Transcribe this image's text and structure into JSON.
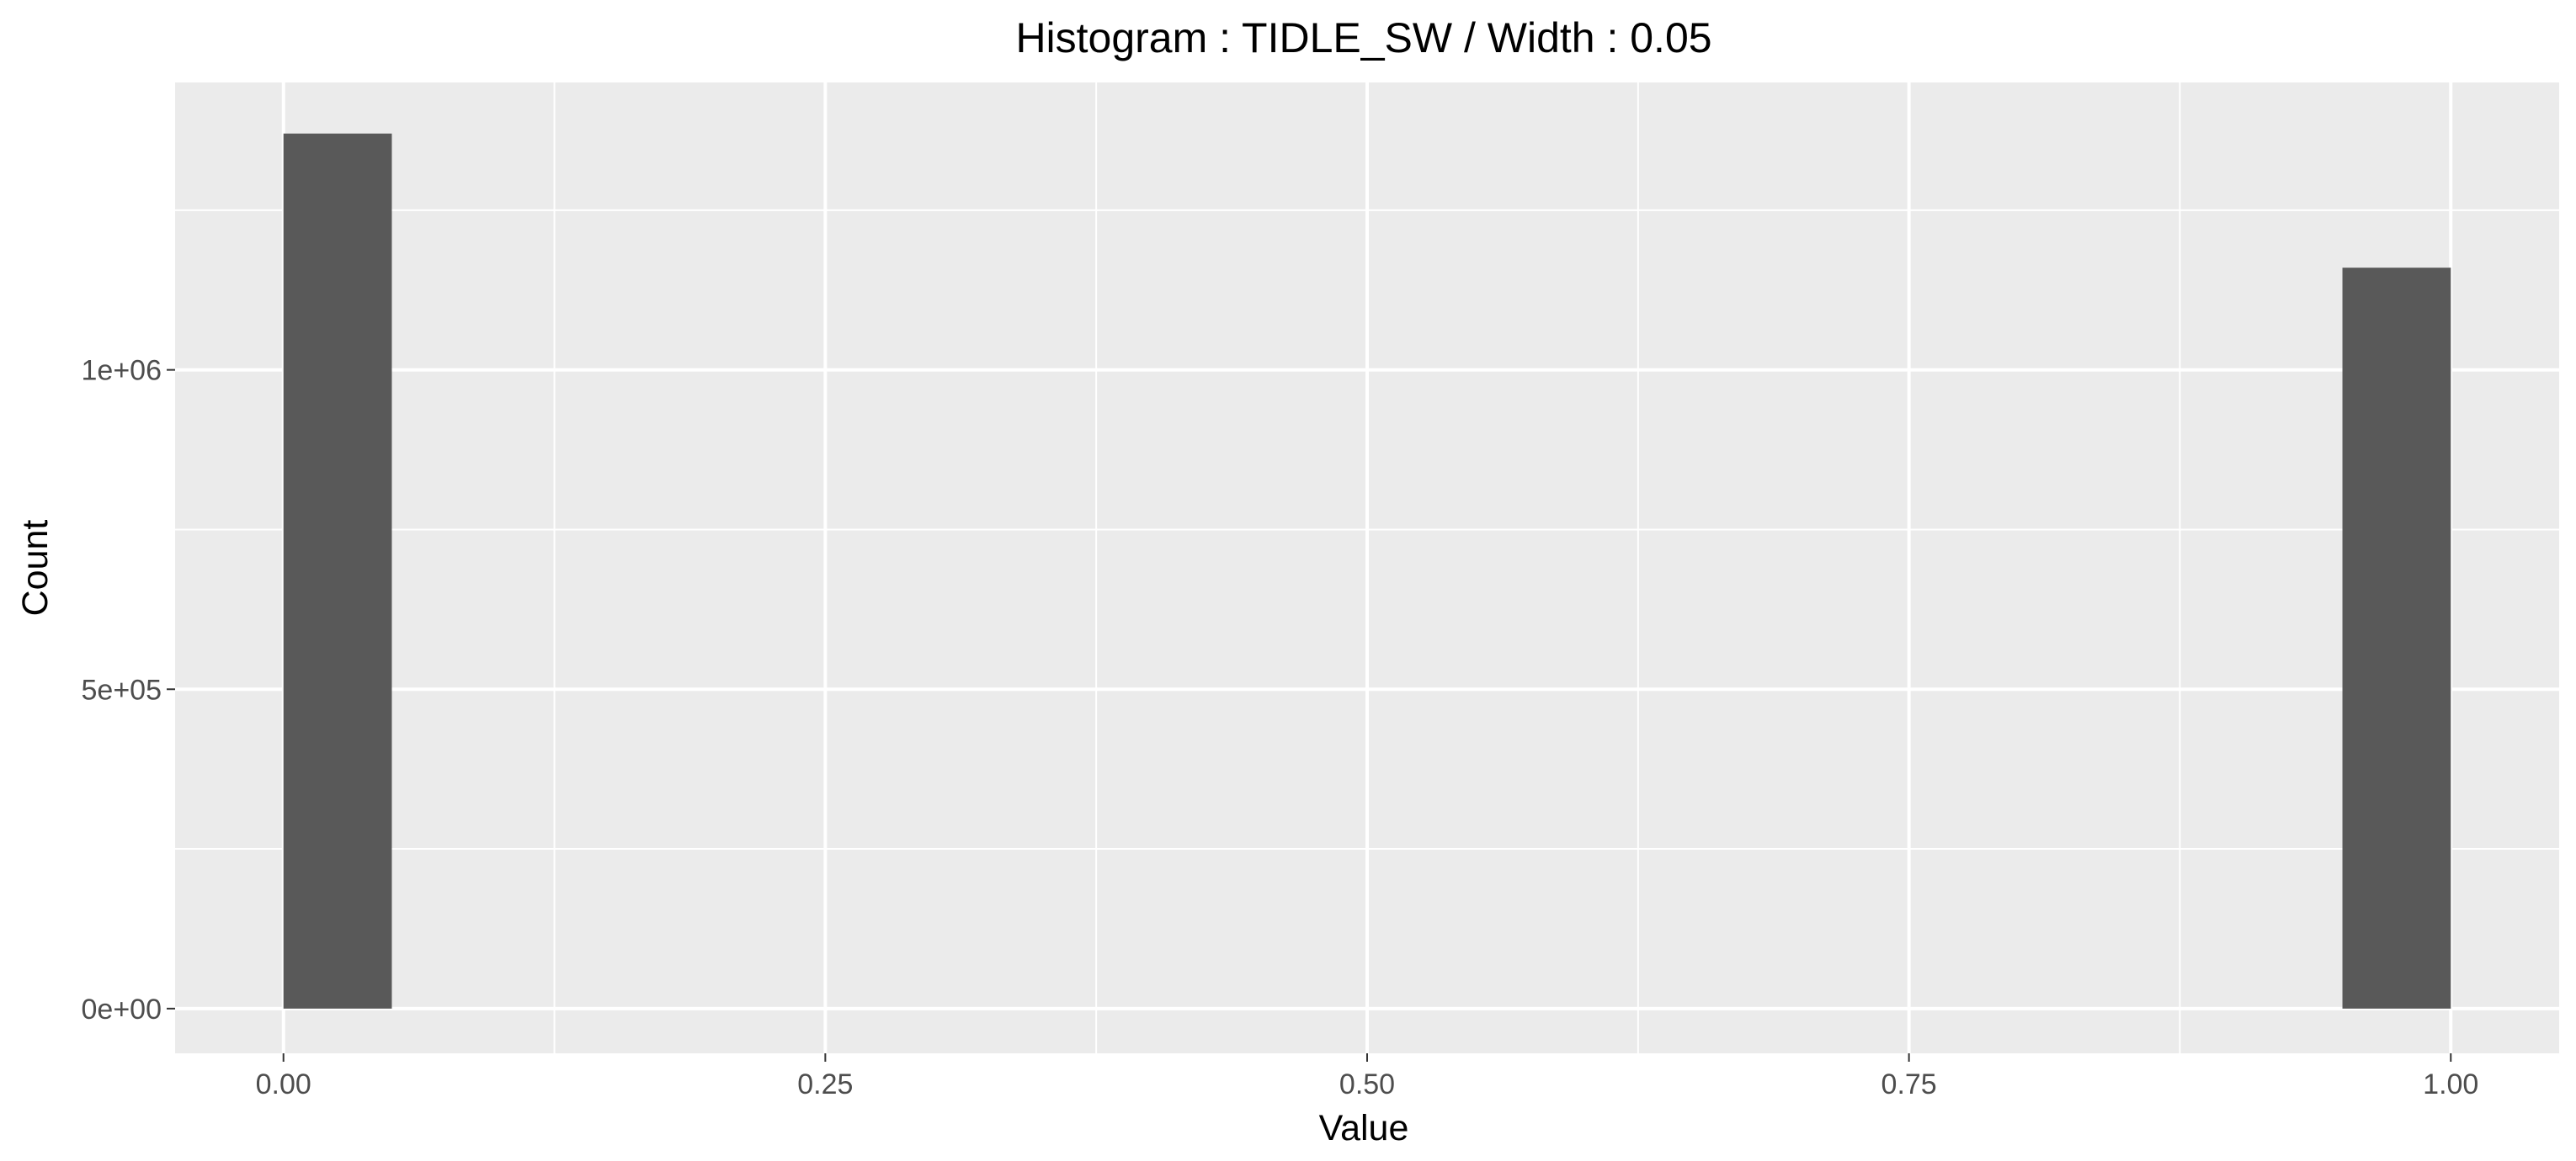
{
  "chart_data": {
    "type": "bar",
    "title": "Histogram : TIDLE_SW / Width : 0.05",
    "xlabel": "Value",
    "ylabel": "Count",
    "xlim": [
      -0.05,
      1.05
    ],
    "ylim": [
      -70000,
      1450000
    ],
    "x_ticks": [
      0,
      0.25,
      0.5,
      0.75,
      1
    ],
    "x_tick_labels": [
      "0.00",
      "0.25",
      "0.50",
      "0.75",
      "1.00"
    ],
    "y_ticks": [
      0,
      500000,
      1000000
    ],
    "y_tick_labels": [
      "0e+00",
      "5e+05",
      "1e+06"
    ],
    "bin_width": 0.05,
    "bins": [
      {
        "x0": 0.0,
        "x1": 0.05,
        "count": 1370000
      },
      {
        "x0": 0.95,
        "x1": 1.0,
        "count": 1160000
      }
    ],
    "grid": true,
    "legend": "none",
    "colors": {
      "panel_background": "#ebebeb",
      "grid": "#ffffff",
      "bar_fill": "#595959",
      "tick_mark": "#333333",
      "tick_text": "#4d4d4d"
    }
  }
}
